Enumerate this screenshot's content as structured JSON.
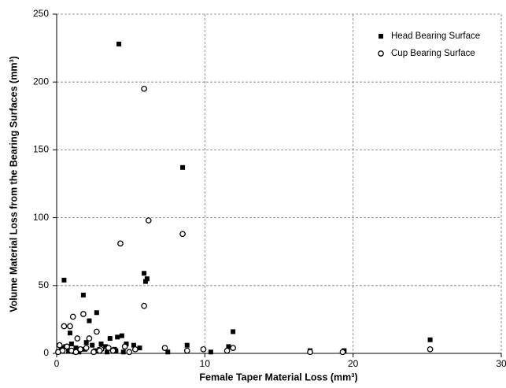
{
  "chart_data": {
    "type": "scatter",
    "x_label": "Female Taper Material Loss (mm³)",
    "y_label": "Volume Material Loss from the Bearing Surfaces (mm³)",
    "xlim": [
      0,
      30
    ],
    "ylim": [
      0,
      250
    ],
    "xticks": [
      0,
      10,
      20,
      30
    ],
    "yticks": [
      0,
      50,
      100,
      150,
      200,
      250
    ],
    "grid": true,
    "legend": "upper right",
    "series": [
      {
        "name": "Head Bearing Surface",
        "marker": "square",
        "color": "#000000",
        "x": [
          4.2,
          8.5,
          5.9,
          6.1,
          6.0,
          0.5,
          1.8,
          2.7,
          2.2,
          0.9,
          4.4,
          4.1,
          11.9,
          25.2,
          17.1,
          19.4,
          8.8,
          11.6,
          10.4,
          7.5,
          3.6,
          3.0,
          2.0,
          0.3,
          0.6,
          1.0,
          1.3,
          1.6,
          2.4,
          3.3,
          3.9,
          4.7,
          5.2,
          5.6,
          0.1,
          0.8,
          1.2,
          1.9,
          2.6,
          3.4,
          4.0,
          0.4,
          1.5,
          2.9,
          4.5
        ],
        "values": [
          228,
          137,
          59,
          55,
          53,
          54,
          43,
          30,
          24,
          15,
          13,
          12,
          16,
          10,
          2,
          2,
          6,
          5,
          1,
          1,
          11,
          7,
          8,
          2,
          5,
          7,
          4,
          3,
          6,
          5,
          3,
          7,
          6,
          4,
          1,
          2,
          1,
          3,
          2,
          1,
          2,
          4,
          1,
          3,
          1
        ]
      },
      {
        "name": "Cup Bearing Surface",
        "marker": "circle",
        "color": "#000000",
        "x": [
          5.9,
          6.2,
          4.3,
          8.5,
          5.9,
          0.5,
          0.9,
          1.1,
          1.8,
          2.2,
          2.7,
          1.4,
          7.3,
          9.9,
          11.9,
          19.3,
          25.2,
          8.8,
          17.1,
          3.5,
          0.2,
          1.6,
          0.7,
          1.0,
          2.0,
          2.5,
          3.0,
          3.8,
          4.6,
          5.3,
          0.1,
          0.4,
          1.3,
          2.9,
          4.9,
          11.5
        ],
        "values": [
          195,
          98,
          81,
          88,
          35,
          20,
          20,
          27,
          29,
          11,
          16,
          11,
          4,
          3,
          4,
          1,
          3,
          2,
          1,
          4,
          6,
          3,
          5,
          2,
          4,
          1,
          3,
          2,
          5,
          3,
          1,
          2,
          1,
          2,
          1,
          2
        ]
      }
    ]
  }
}
